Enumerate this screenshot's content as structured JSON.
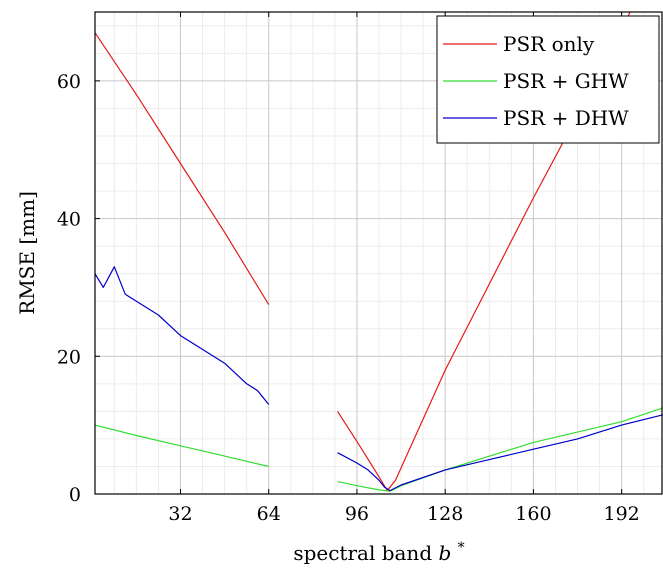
{
  "chart_data": {
    "type": "line",
    "title": "",
    "xlabel": "spectral band",
    "xlabel_symbol": "b",
    "xlabel_superscript": "*",
    "ylabel": "RMSE [mm]",
    "xlim": [
      1,
      207
    ],
    "ylim": [
      0,
      70
    ],
    "x_ticks": [
      32,
      64,
      96,
      128,
      160,
      192
    ],
    "y_ticks": [
      0,
      20,
      40,
      60
    ],
    "grid": true,
    "minor_grid": true,
    "legend_position": "top-right",
    "series": [
      {
        "name": "PSR only",
        "color": "#e41a1c",
        "segments": [
          {
            "x": [
              1,
              16,
              32,
              48,
              64
            ],
            "y": [
              67,
              58,
              48,
              38,
              27.5
            ]
          },
          {
            "x": [
              89,
              97,
              104,
              107,
              110,
              128,
              160,
              176,
              192,
              200
            ],
            "y": [
              12,
              7,
              2.5,
              0.5,
              2,
              18,
              43,
              55,
              67,
              75
            ]
          }
        ]
      },
      {
        "name": "PSR + GHW",
        "color": "#33dd33",
        "segments": [
          {
            "x": [
              1,
              16,
              32,
              48,
              64
            ],
            "y": [
              10,
              8.5,
              7,
              5.5,
              4
            ]
          },
          {
            "x": [
              89,
              96,
              104,
              108,
              112,
              128,
              160,
              192,
              207
            ],
            "y": [
              1.8,
              1.2,
              0.6,
              0.4,
              1.2,
              3.5,
              7.5,
              10.5,
              12.5
            ]
          }
        ]
      },
      {
        "name": "PSR + DHW",
        "color": "#0000cc",
        "segments": [
          {
            "x": [
              1,
              4,
              8,
              12,
              16,
              24,
              32,
              40,
              48,
              56,
              60,
              64
            ],
            "y": [
              32,
              30,
              33,
              29,
              28,
              26,
              23,
              21,
              19,
              16,
              15,
              13
            ]
          },
          {
            "x": [
              89,
              96,
              100,
              104,
              106,
              108,
              112,
              128,
              144,
              160,
              176,
              192,
              207
            ],
            "y": [
              6,
              4.5,
              3.5,
              2,
              1,
              0.5,
              1.3,
              3.5,
              5,
              6.5,
              8,
              10,
              11.5
            ]
          }
        ]
      }
    ]
  }
}
